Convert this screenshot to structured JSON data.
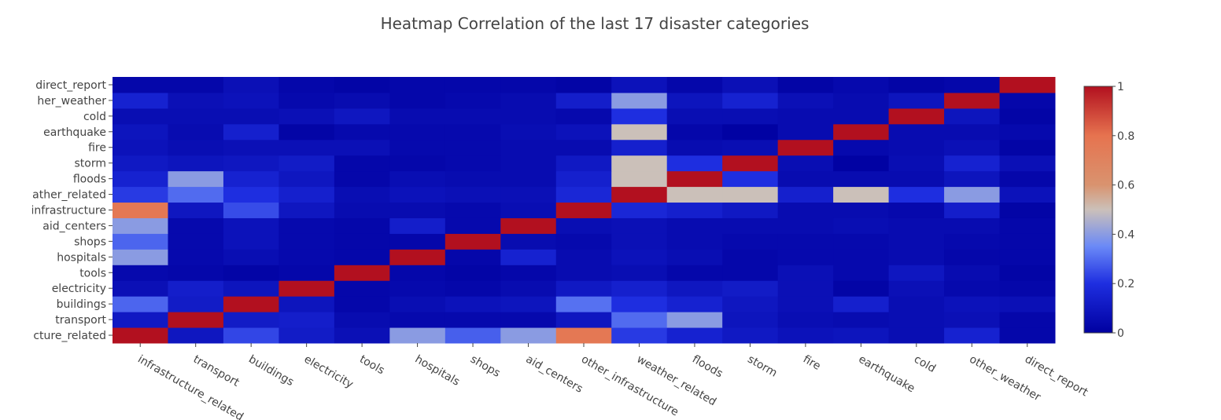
{
  "chart_data": {
    "type": "heatmap",
    "title": "Heatmap Correlation of the last 17 disaster categories",
    "x_labels": [
      "infrastructure_related",
      "transport",
      "buildings",
      "electricity",
      "tools",
      "hospitals",
      "shops",
      "aid_centers",
      "other_infrastructure",
      "weather_related",
      "floods",
      "storm",
      "fire",
      "earthquake",
      "cold",
      "other_weather",
      "direct_report"
    ],
    "y_labels": [
      "infrastructure_related",
      "transport",
      "buildings",
      "electricity",
      "tools",
      "hospitals",
      "shops",
      "aid_centers",
      "other_infrastructure",
      "weather_related",
      "floods",
      "storm",
      "fire",
      "earthquake",
      "cold",
      "other_weather",
      "direct_report"
    ],
    "y_tick_text": [
      "cture_related",
      "transport",
      "buildings",
      "electricity",
      "tools",
      "hospitals",
      "shops",
      "aid_centers",
      "infrastructure",
      "ather_related",
      "floods",
      "storm",
      "fire",
      "earthquake",
      "cold",
      "her_weather",
      "direct_report"
    ],
    "z": [
      [
        1.0,
        0.1,
        0.24,
        0.12,
        0.07,
        0.4,
        0.28,
        0.4,
        0.77,
        0.22,
        0.15,
        0.11,
        0.08,
        0.09,
        0.06,
        0.15,
        0.03
      ],
      [
        0.11,
        1.0,
        0.12,
        0.13,
        0.05,
        0.04,
        0.04,
        0.04,
        0.1,
        0.3,
        0.4,
        0.09,
        0.06,
        0.05,
        0.06,
        0.07,
        0.03
      ],
      [
        0.29,
        0.12,
        1.0,
        0.09,
        0.03,
        0.06,
        0.08,
        0.09,
        0.31,
        0.2,
        0.15,
        0.1,
        0.07,
        0.14,
        0.06,
        0.08,
        0.07
      ],
      [
        0.07,
        0.13,
        0.09,
        1.0,
        0.03,
        0.04,
        0.03,
        0.05,
        0.11,
        0.14,
        0.1,
        0.12,
        0.07,
        0.02,
        0.07,
        0.04,
        0.03
      ],
      [
        0.04,
        0.03,
        0.02,
        0.03,
        1.0,
        0.03,
        0.02,
        0.03,
        0.05,
        0.06,
        0.03,
        0.03,
        0.07,
        0.04,
        0.1,
        0.05,
        0.02
      ],
      [
        0.4,
        0.04,
        0.06,
        0.04,
        0.03,
        1.0,
        0.03,
        0.15,
        0.05,
        0.08,
        0.06,
        0.03,
        0.04,
        0.04,
        0.05,
        0.03,
        0.03
      ],
      [
        0.29,
        0.04,
        0.08,
        0.04,
        0.03,
        0.03,
        1.0,
        0.05,
        0.04,
        0.07,
        0.05,
        0.04,
        0.04,
        0.04,
        0.05,
        0.04,
        0.03
      ],
      [
        0.4,
        0.04,
        0.08,
        0.04,
        0.03,
        0.13,
        0.04,
        1.0,
        0.06,
        0.07,
        0.05,
        0.05,
        0.05,
        0.06,
        0.05,
        0.05,
        0.03
      ],
      [
        0.77,
        0.1,
        0.25,
        0.1,
        0.05,
        0.05,
        0.04,
        0.06,
        1.0,
        0.17,
        0.14,
        0.11,
        0.05,
        0.05,
        0.04,
        0.13,
        0.02
      ],
      [
        0.22,
        0.3,
        0.2,
        0.14,
        0.06,
        0.08,
        0.07,
        0.07,
        0.17,
        1.0,
        0.5,
        0.5,
        0.14,
        0.5,
        0.2,
        0.4,
        0.08
      ],
      [
        0.15,
        0.4,
        0.15,
        0.1,
        0.03,
        0.06,
        0.05,
        0.05,
        0.14,
        0.5,
        1.0,
        0.2,
        0.05,
        0.05,
        0.05,
        0.09,
        0.03
      ],
      [
        0.11,
        0.09,
        0.1,
        0.12,
        0.03,
        0.03,
        0.04,
        0.05,
        0.11,
        0.5,
        0.2,
        1.0,
        0.06,
        0.01,
        0.06,
        0.15,
        0.07
      ],
      [
        0.08,
        0.06,
        0.07,
        0.07,
        0.07,
        0.04,
        0.04,
        0.05,
        0.05,
        0.14,
        0.05,
        0.06,
        1.0,
        0.04,
        0.05,
        0.07,
        0.02
      ],
      [
        0.09,
        0.05,
        0.14,
        0.02,
        0.04,
        0.04,
        0.04,
        0.06,
        0.08,
        0.5,
        0.03,
        0.01,
        0.05,
        1.0,
        0.05,
        0.05,
        0.04
      ],
      [
        0.06,
        0.06,
        0.06,
        0.07,
        0.1,
        0.05,
        0.05,
        0.05,
        0.04,
        0.2,
        0.06,
        0.06,
        0.05,
        0.05,
        1.0,
        0.09,
        0.02
      ],
      [
        0.15,
        0.07,
        0.08,
        0.04,
        0.05,
        0.03,
        0.04,
        0.05,
        0.13,
        0.4,
        0.09,
        0.15,
        0.07,
        0.05,
        0.09,
        1.0,
        0.03
      ],
      [
        0.03,
        0.03,
        0.07,
        0.03,
        0.02,
        0.03,
        0.03,
        0.03,
        0.02,
        0.08,
        0.03,
        0.07,
        0.02,
        0.04,
        0.02,
        0.03,
        1.0
      ]
    ],
    "zmin": 0,
    "zmax": 1,
    "colorscale": [
      [
        0,
        "#0000a0"
      ],
      [
        0.2,
        "#1e2ee0"
      ],
      [
        0.35,
        "#6a89f7"
      ],
      [
        0.5,
        "#cbc0b9"
      ],
      [
        0.6,
        "#d9936f"
      ],
      [
        0.8,
        "#e6734f"
      ],
      [
        1,
        "#b2101f"
      ]
    ],
    "colorbar": {
      "ticks": [
        0,
        0.2,
        0.4,
        0.6,
        0.8,
        1
      ],
      "tick_labels": [
        "0",
        "0.2",
        "0.4",
        "0.6",
        "0.8",
        "1"
      ]
    },
    "grid": false
  }
}
